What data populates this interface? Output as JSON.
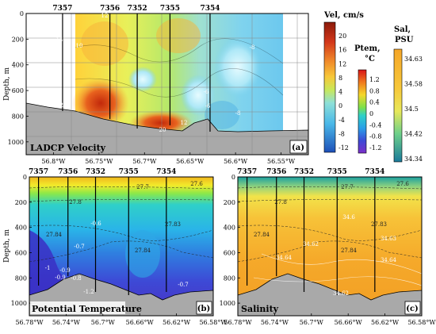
{
  "chart_data": [
    {
      "panel": "(a)",
      "type": "heatmap",
      "title": "LADCP Velocity",
      "ylabel": "Depth, m",
      "ylim": [
        1100,
        0
      ],
      "yticks": [
        "0",
        "200",
        "400",
        "600",
        "800",
        "1000"
      ],
      "xticks": [
        "56.8°W",
        "56.75°W",
        "56.7°W",
        "56.65°W",
        "56.6°W",
        "56.55°W"
      ],
      "xlim": [
        -56.83,
        -56.52
      ],
      "stations": [
        "7357",
        "7356",
        "7352",
        "7355",
        "7354"
      ],
      "station_lon": [
        -56.79,
        -56.738,
        -56.708,
        -56.672,
        -56.628
      ],
      "contour_labels": [
        "12",
        "14",
        "10",
        "20",
        "-8",
        "-6",
        "-6",
        "-8",
        "20",
        "12"
      ],
      "colorbar": {
        "title": "Vel, cm/s",
        "ticks": [
          "20",
          "16",
          "12",
          "8",
          "4",
          "0",
          "-4",
          "-8",
          "-12"
        ]
      },
      "grid": true
    },
    {
      "panel": "(b)",
      "type": "heatmap",
      "title": "Potential Temperature",
      "ylabel": "Depth, m",
      "ylim": [
        1100,
        0
      ],
      "yticks": [
        "0",
        "200",
        "400",
        "600",
        "800",
        "1000"
      ],
      "xticks": [
        "56.78°W",
        "56.74°W",
        "56.7°W",
        "56.66°W",
        "56.62°W",
        "56.58°W"
      ],
      "xlim": [
        -56.78,
        -56.58
      ],
      "stations": [
        "7357",
        "7356",
        "7352",
        "7355",
        "7354"
      ],
      "station_lon": [
        -56.77,
        -56.738,
        -56.708,
        -56.672,
        -56.631
      ],
      "contour_labels": [
        "27.7",
        "27.6",
        "27.8",
        "27.84",
        "27.83",
        "27.84",
        "-0.6",
        "-0.7",
        "-0.9",
        "-0.8",
        "-1",
        "-0.9",
        "-1.2",
        "-0.7"
      ],
      "colorbar": {
        "title": "Ptem, °C",
        "ticks": [
          "1.2",
          "0.8",
          "0.4",
          "0",
          "-0.4",
          "-0.8",
          "-1.2"
        ]
      }
    },
    {
      "panel": "(c)",
      "type": "heatmap",
      "title": "Salinity",
      "ylim": [
        1100,
        0
      ],
      "yticks": [
        "0",
        "200",
        "400",
        "600",
        "800",
        "1000"
      ],
      "xticks": [
        "56.78°W",
        "56.74°W",
        "56.7°W",
        "56.66°W",
        "56.62°W",
        "56.58°W"
      ],
      "xlim": [
        -56.78,
        -56.58
      ],
      "stations": [
        "7357",
        "7356",
        "7352",
        "7355",
        "7354"
      ],
      "station_lon": [
        -56.77,
        -56.738,
        -56.708,
        -56.672,
        -56.631
      ],
      "contour_labels": [
        "27.7",
        "27.6",
        "27.8",
        "27.84",
        "27.83",
        "27.84",
        "34.6",
        "34.63",
        "34.64",
        "34.62",
        "34.64",
        "34.62"
      ],
      "colorbar": {
        "title": "Sal, PSU",
        "ticks": [
          "34.63",
          "34.58",
          "34.5",
          "34.42",
          "34.34"
        ]
      }
    }
  ]
}
